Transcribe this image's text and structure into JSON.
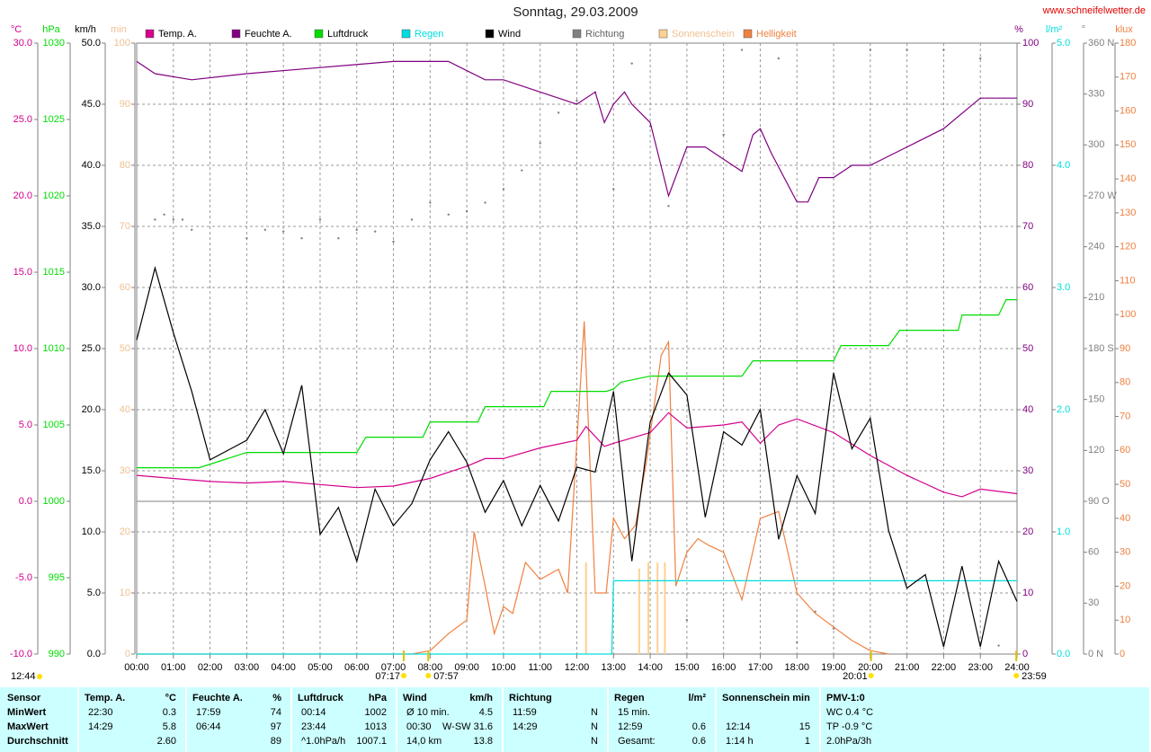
{
  "chart_data": {
    "type": "line",
    "title": "Sonntag, 29.03.2009",
    "source": "www.schneifelwetter.de",
    "xlim": [
      0,
      24
    ],
    "xticks": [
      {
        "value": 0,
        "label": "00:00"
      },
      {
        "value": 1,
        "label": "01:00"
      },
      {
        "value": 2,
        "label": "02:00"
      },
      {
        "value": 3,
        "label": "03:00"
      },
      {
        "value": 4,
        "label": "04:00"
      },
      {
        "value": 5,
        "label": "05:00"
      },
      {
        "value": 6,
        "label": "06:00"
      },
      {
        "value": 7,
        "label": "07:00"
      },
      {
        "value": 8,
        "label": "08:00"
      },
      {
        "value": 9,
        "label": "09:00"
      },
      {
        "value": 10,
        "label": "10:00"
      },
      {
        "value": 11,
        "label": "11:00"
      },
      {
        "value": 12,
        "label": "12:00"
      },
      {
        "value": 13,
        "label": "13:00"
      },
      {
        "value": 14,
        "label": "14:00"
      },
      {
        "value": 15,
        "label": "15:00"
      },
      {
        "value": 16,
        "label": "16:00"
      },
      {
        "value": 17,
        "label": "17:00"
      },
      {
        "value": 18,
        "label": "18:00"
      },
      {
        "value": 19,
        "label": "19:00"
      },
      {
        "value": 20,
        "label": "20:00"
      },
      {
        "value": 21,
        "label": "21:00"
      },
      {
        "value": 22,
        "label": "22:00"
      },
      {
        "value": 23,
        "label": "23:00"
      },
      {
        "value": 24,
        "label": "24:00"
      }
    ],
    "grid": true,
    "daylength": "12:44",
    "annotations": [
      {
        "text": "07:17",
        "x": 7.28
      },
      {
        "text": "07:57",
        "x": 7.95
      },
      {
        "text": "20:01",
        "x": 20.02
      },
      {
        "text": "23:59",
        "x": 23.98
      }
    ],
    "series": [
      {
        "name": "Temp. A.",
        "type": "line",
        "color": "#d4008c",
        "unit": "°C",
        "ylim": [
          -10,
          30
        ],
        "yticks": [
          {
            "value": -10,
            "label": "-10.0"
          },
          {
            "value": -5,
            "label": "-5.0"
          },
          {
            "value": 0,
            "label": "0.0"
          },
          {
            "value": 5,
            "label": "5.0"
          },
          {
            "value": 10,
            "label": "10.0"
          },
          {
            "value": 15,
            "label": "15.0"
          },
          {
            "value": 20,
            "label": "20.0"
          },
          {
            "value": 25,
            "label": "25.0"
          },
          {
            "value": 30,
            "label": "30.0"
          }
        ],
        "x": [
          0,
          1,
          2,
          3,
          4,
          5,
          6,
          7,
          8,
          9,
          9.5,
          10,
          11,
          12,
          12.25,
          12.75,
          13,
          14,
          14.5,
          15,
          16,
          16.5,
          17,
          17.5,
          18,
          19,
          20,
          21,
          22,
          22.5,
          23,
          24
        ],
        "values": [
          1.7,
          1.5,
          1.3,
          1.2,
          1.3,
          1.1,
          0.9,
          1.0,
          1.5,
          2.3,
          2.8,
          2.8,
          3.5,
          4.0,
          4.9,
          3.6,
          3.8,
          4.5,
          5.8,
          4.8,
          5.0,
          5.2,
          3.8,
          5.0,
          5.4,
          4.5,
          3.0,
          1.7,
          0.6,
          0.3,
          0.8,
          0.5
        ]
      },
      {
        "name": "Feuchte A.",
        "type": "line",
        "color": "#800080",
        "unit": "%",
        "ylim": [
          0,
          100
        ],
        "yticks": [
          0,
          10,
          20,
          30,
          40,
          50,
          60,
          70,
          80,
          90,
          100
        ],
        "x": [
          0,
          0.5,
          1.5,
          3,
          5,
          7,
          8.5,
          9.5,
          10,
          11,
          12,
          12.5,
          12.75,
          13,
          13.3,
          13.5,
          14,
          14.5,
          15,
          15.5,
          16,
          16.5,
          16.8,
          17,
          17.3,
          18,
          18.3,
          18.6,
          19,
          19.5,
          20,
          21,
          22,
          23,
          24
        ],
        "values": [
          97,
          95,
          94,
          95,
          96,
          97,
          97,
          94,
          94,
          92,
          90,
          92,
          87,
          90,
          92,
          90,
          87,
          75,
          83,
          83,
          81,
          79,
          85,
          86,
          82,
          74,
          74,
          78,
          78,
          80,
          80,
          83,
          86,
          91,
          91
        ]
      },
      {
        "name": "Luftdruck",
        "type": "line",
        "color": "#00dd00",
        "unit": "hPa",
        "ylim": [
          990,
          1030
        ],
        "yticks": [
          990,
          995,
          1000,
          1005,
          1010,
          1015,
          1020,
          1025,
          1030
        ],
        "x": [
          0,
          1.7,
          3,
          6,
          6.25,
          7.8,
          8,
          9.3,
          9.5,
          11.1,
          11.3,
          12.8,
          13,
          13.2,
          14,
          16.5,
          16.8,
          19,
          19.2,
          20.5,
          20.8,
          22.4,
          22.5,
          23.5,
          23.7,
          24
        ],
        "values": [
          1002.2,
          1002.2,
          1003.2,
          1003.2,
          1004.2,
          1004.2,
          1005.2,
          1005.2,
          1006.2,
          1006.2,
          1007.2,
          1007.2,
          1007.35,
          1007.8,
          1008.2,
          1008.2,
          1009.2,
          1009.2,
          1010.2,
          1010.2,
          1011.2,
          1011.2,
          1012.2,
          1012.2,
          1013.2,
          1013.2
        ]
      },
      {
        "name": "Regen",
        "type": "line",
        "color": "#00dddd",
        "unit": "l/m²",
        "ylim": [
          0,
          5
        ],
        "yticks": [
          {
            "value": 0,
            "label": "0.0"
          },
          {
            "value": 1,
            "label": "1.0"
          },
          {
            "value": 2,
            "label": "2.0"
          },
          {
            "value": 3,
            "label": "3.0"
          },
          {
            "value": 4,
            "label": "4.0"
          },
          {
            "value": 5,
            "label": "5.0"
          }
        ],
        "x": [
          0,
          12.95,
          13.0,
          24
        ],
        "values": [
          0,
          0,
          0.6,
          0.6
        ]
      },
      {
        "name": "Wind",
        "type": "line",
        "color": "#000000",
        "unit": "km/h",
        "ylim": [
          0,
          50
        ],
        "yticks": [
          {
            "value": 0,
            "label": "0.0"
          },
          {
            "value": 5,
            "label": "5.0"
          },
          {
            "value": 10,
            "label": "10.0"
          },
          {
            "value": 15,
            "label": "15.0"
          },
          {
            "value": 20,
            "label": "20.0"
          },
          {
            "value": 25,
            "label": "25.0"
          },
          {
            "value": 30,
            "label": "30.0"
          },
          {
            "value": 35,
            "label": "35.0"
          },
          {
            "value": 40,
            "label": "40.0"
          },
          {
            "value": 45,
            "label": "45.0"
          },
          {
            "value": 50,
            "label": "50.0"
          }
        ],
        "x": [
          0,
          0.5,
          1,
          1.5,
          2,
          2.5,
          3,
          3.5,
          4,
          4.5,
          5,
          5.5,
          6,
          6.5,
          7,
          7.5,
          8,
          8.5,
          9,
          9.5,
          10,
          10.5,
          11,
          11.5,
          12,
          12.5,
          13,
          13.5,
          14,
          14.5,
          15,
          15.5,
          16,
          16.5,
          17,
          17.5,
          18,
          18.5,
          19,
          19.5,
          20,
          20.5,
          21,
          21.5,
          22,
          22.5,
          23,
          23.5,
          24
        ],
        "values": [
          25.7,
          31.6,
          26.3,
          21.5,
          15.9,
          16.7,
          17.5,
          20,
          16.4,
          22,
          9.8,
          12,
          7.6,
          13.5,
          10.5,
          12.3,
          15.9,
          18.2,
          15.7,
          11.6,
          14.2,
          10.5,
          13.8,
          10.9,
          15.3,
          14.9,
          21.5,
          7.6,
          19,
          23,
          21.2,
          11.2,
          18.2,
          17.1,
          20,
          9.4,
          14.6,
          11.5,
          23,
          16.8,
          19.3,
          10.1,
          5.4,
          6.5,
          0.6,
          7.2,
          0.6,
          7.6,
          4.3
        ]
      },
      {
        "name": "Richtung",
        "type": "scatter",
        "color": "#808080",
        "unit": "°",
        "ylim": [
          0,
          360
        ],
        "yticks": [
          {
            "value": 0,
            "label": "0 N"
          },
          30,
          60,
          {
            "value": 90,
            "label": "90 O"
          },
          120,
          150,
          {
            "value": 180,
            "label": "180 S"
          },
          210,
          240,
          {
            "value": 270,
            "label": "270 W"
          },
          300,
          330,
          {
            "value": 360,
            "label": "360 N"
          }
        ],
        "x": [
          0.5,
          0.75,
          1,
          1.25,
          1.5,
          3,
          3.5,
          4,
          4.5,
          5,
          5.5,
          6,
          6.5,
          7,
          7.5,
          8,
          8.5,
          9,
          9.5,
          10,
          10.5,
          11,
          11.5,
          12,
          12.5,
          13,
          13.5,
          14,
          14.5,
          15,
          16,
          16.5,
          17.5,
          18,
          18.5,
          19,
          20,
          21,
          22,
          23,
          23.5
        ],
        "values": [
          256,
          259,
          256,
          256,
          250,
          245,
          250,
          249,
          245,
          256,
          245,
          250,
          249,
          243,
          256,
          266,
          259,
          261,
          266,
          274,
          285,
          301,
          319,
          326,
          331,
          274,
          348,
          311,
          264,
          20,
          306,
          356,
          351,
          7,
          25,
          15,
          356,
          356,
          356,
          351,
          5
        ]
      },
      {
        "name": "Sonnenschein",
        "type": "bar",
        "color": "#ffd090",
        "unit": "min",
        "ylim": [
          0,
          100
        ],
        "yticks": [
          0,
          10,
          20,
          30,
          40,
          50,
          60,
          70,
          80,
          90,
          100
        ],
        "x": [
          12.25,
          13.7,
          13.95,
          14.2,
          14.4
        ],
        "values": [
          15,
          14,
          15,
          15,
          15
        ]
      },
      {
        "name": "Helligkeit",
        "type": "line",
        "color": "#f08040",
        "unit": "klux",
        "ylim": [
          0,
          180
        ],
        "yticks": [
          0,
          10,
          20,
          30,
          40,
          50,
          60,
          70,
          80,
          90,
          100,
          110,
          120,
          130,
          140,
          150,
          160,
          170,
          180
        ],
        "x": [
          0,
          7.5,
          8,
          8.5,
          9,
          9.2,
          9.5,
          9.75,
          10,
          10.25,
          10.6,
          11,
          11.5,
          11.75,
          12.2,
          12.5,
          12.8,
          13,
          13.3,
          13.6,
          13.9,
          14.3,
          14.5,
          14.7,
          15,
          15.3,
          15.6,
          16,
          16.5,
          17,
          17.5,
          18,
          18.5,
          19,
          19.5,
          20,
          20.5
        ],
        "values": [
          0,
          0,
          1,
          6,
          10,
          36,
          20,
          6,
          14,
          12,
          27,
          22,
          25,
          18,
          98,
          18,
          18,
          40,
          34,
          38,
          57,
          88,
          92,
          20,
          30,
          34,
          32,
          30,
          16,
          40,
          42,
          18,
          12,
          8,
          4,
          1,
          0
        ]
      }
    ]
  },
  "summary": {
    "labels": [
      "Sensor",
      "MinWert",
      "MaxWert",
      "Durchschnitt"
    ],
    "panels": [
      {
        "name": "Temp. A.",
        "unit": "°C",
        "rows": [
          [
            "22:30",
            "0.3"
          ],
          [
            "14:29",
            "5.8"
          ],
          [
            "2.60"
          ]
        ]
      },
      {
        "name": "Feuchte A.",
        "unit": "%",
        "rows": [
          [
            "17:59",
            "74"
          ],
          [
            "06:44",
            "97"
          ],
          [
            "89"
          ]
        ]
      },
      {
        "name": "Luftdruck",
        "unit": "hPa",
        "rows": [
          [
            "00:14",
            "1002"
          ],
          [
            "23:44",
            "1013"
          ],
          [
            "^1.0hPa/h",
            "1007.1"
          ]
        ]
      },
      {
        "name": "Wind",
        "unit": "km/h",
        "rows": [
          [
            "Ø 10 min.",
            "4.5"
          ],
          [
            "00:30",
            "W-SW 31.6"
          ],
          [
            "14,0 km",
            "13.8"
          ]
        ]
      },
      {
        "name": "Richtung",
        "rows": [
          [
            "11:59",
            "N"
          ],
          [
            "14:29",
            "N"
          ],
          [
            "N"
          ]
        ]
      },
      {
        "name": "Regen",
        "unit": "l/m²",
        "rows": [
          [
            "15 min."
          ],
          [
            "12:59",
            "0.6"
          ],
          [
            "Gesamt:",
            "0.6"
          ]
        ]
      },
      {
        "name": "Sonnenschein min",
        "rows": [
          [],
          [
            "12:14",
            "15"
          ],
          [
            "1:14 h",
            "1"
          ]
        ]
      },
      {
        "name": "PMV-1:0",
        "rows": [
          [
            "WC 0.4 °C"
          ],
          [
            "TP -0.9 °C"
          ],
          [
            "2.0hPa/3h"
          ]
        ]
      }
    ]
  }
}
